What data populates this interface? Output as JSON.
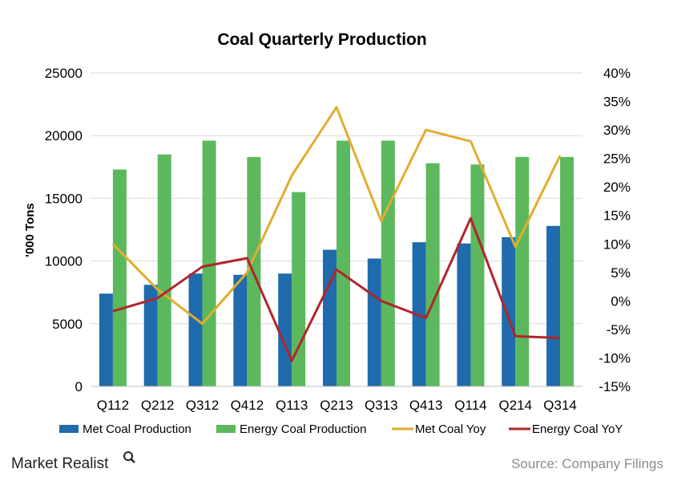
{
  "colors": {
    "met_bar": "#1f6bab",
    "energy_bar": "#5cb85c",
    "met_yoy": "#e0ad2e",
    "energy_yoy": "#b0252e",
    "grid": "#d9d9d9"
  },
  "brand": "Market Realist",
  "source": "Source: Company Filings",
  "chart_data": {
    "type": "bar",
    "title": "Coal Quarterly Production",
    "ylabel": "'000 Tons",
    "ylim": [
      0,
      25000
    ],
    "y_ticks": [
      "0",
      "5000",
      "10000",
      "15000",
      "20000",
      "25000"
    ],
    "y2lim": [
      -15,
      40
    ],
    "y2_ticks": [
      "-15%",
      "-10%",
      "-5%",
      "0%",
      "5%",
      "10%",
      "15%",
      "20%",
      "25%",
      "30%",
      "35%",
      "40%"
    ],
    "grid": true,
    "legend_position": "bottom",
    "categories": [
      "Q112",
      "Q212",
      "Q312",
      "Q412",
      "Q113",
      "Q213",
      "Q313",
      "Q413",
      "Q114",
      "Q214",
      "Q314"
    ],
    "series": [
      {
        "name": "Met Coal Production",
        "type": "bar",
        "axis": "left",
        "values": [
          7400,
          8100,
          9000,
          8900,
          9000,
          10900,
          10200,
          11500,
          11400,
          11900,
          12800
        ]
      },
      {
        "name": "Energy Coal Production",
        "type": "bar",
        "axis": "left",
        "values": [
          17300,
          18500,
          19600,
          18300,
          15500,
          19600,
          19600,
          17800,
          17700,
          18300,
          18300
        ]
      },
      {
        "name": "Met Coal Yoy",
        "type": "line",
        "axis": "right",
        "values": [
          10.0,
          2.0,
          -4.0,
          5.0,
          22.0,
          34.0,
          14.0,
          30.0,
          28.0,
          9.5,
          25.5
        ]
      },
      {
        "name": "Energy Coal YoY",
        "type": "line",
        "axis": "right",
        "values": [
          -1.8,
          0.5,
          6.0,
          7.5,
          -10.5,
          5.5,
          0.0,
          -3.0,
          14.5,
          -6.2,
          -6.5
        ]
      }
    ]
  }
}
